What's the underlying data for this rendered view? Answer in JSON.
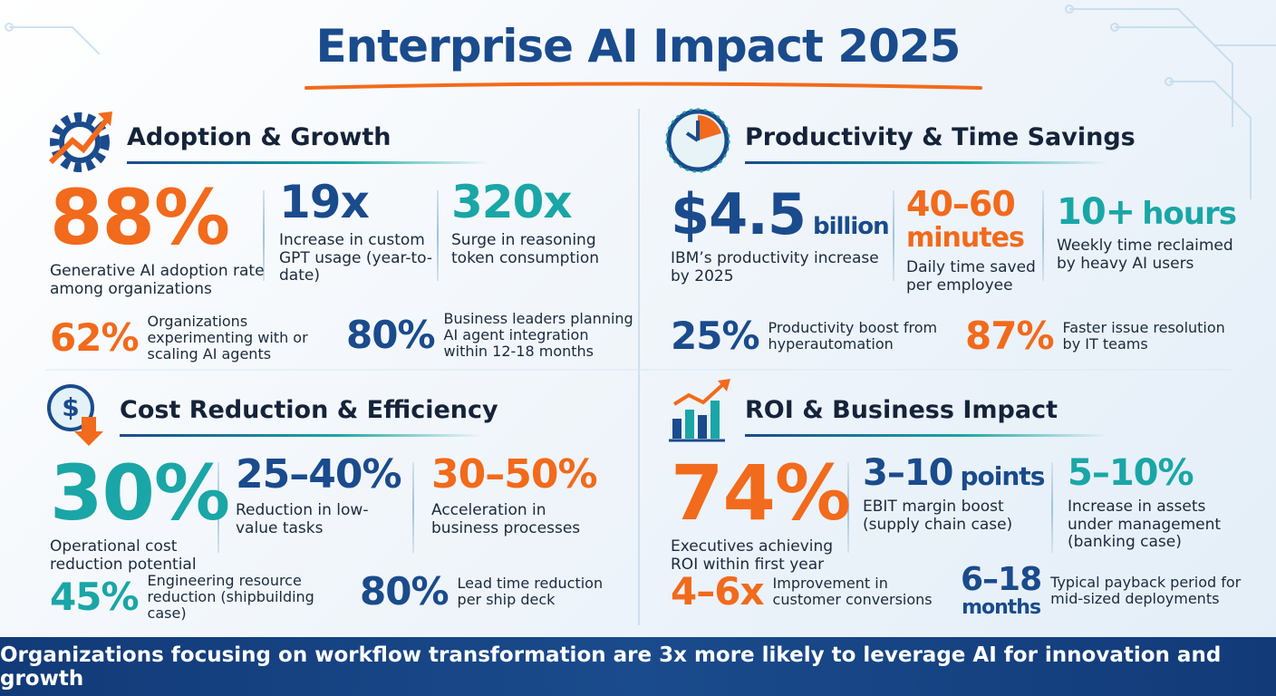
{
  "title": "Enterprise AI Impact 2025",
  "sections": [
    {
      "heading": "Adoption & Growth",
      "main": [
        {
          "value": "88%",
          "text": "Generative AI adoption rate among organizations"
        },
        {
          "value": "19x",
          "text": "Increase in custom GPT usage (year-to-date)"
        },
        {
          "value": "320x",
          "text": "Surge in reasoning token consumption"
        }
      ],
      "secondary": [
        {
          "value": "62%",
          "text": "Organizations experimenting with or scaling AI agents"
        },
        {
          "value": "80%",
          "text": "Business leaders planning AI agent integration within 12-18 months"
        }
      ]
    },
    {
      "heading": "Productivity & Time Savings",
      "main": [
        {
          "value": "$4.5",
          "unit": "billion",
          "text": "IBM’s productivity increase by 2025"
        },
        {
          "value": "40–60",
          "unit": "minutes",
          "text": "Daily time saved per employee"
        },
        {
          "value": "10+",
          "unit": "hours",
          "text": "Weekly time reclaimed by heavy AI users"
        }
      ],
      "secondary": [
        {
          "value": "25%",
          "text": "Productivity boost from hyperautomation"
        },
        {
          "value": "87%",
          "text": "Faster issue resolution by IT teams"
        }
      ]
    },
    {
      "heading": "Cost Reduction & Efficiency",
      "main": [
        {
          "value": "30%",
          "text": "Operational cost reduction potential"
        },
        {
          "value": "25–40%",
          "text": "Reduction in low-value tasks"
        },
        {
          "value": "30–50%",
          "text": "Acceleration in business processes"
        }
      ],
      "secondary": [
        {
          "value": "45%",
          "text": "Engineering resource reduction (shipbuilding case)"
        },
        {
          "value": "80%",
          "text": "Lead time reduction per ship deck"
        }
      ]
    },
    {
      "heading": "ROI & Business Impact",
      "main": [
        {
          "value": "74%",
          "text": "Executives achieving ROI within first year"
        },
        {
          "value": "3–10",
          "unit": "points",
          "text": "EBIT margin boost (supply chain case)"
        },
        {
          "value": "5–10%",
          "text": "Increase in assets under management (banking case)"
        }
      ],
      "secondary": [
        {
          "value": "4–6x",
          "text": "Improvement in customer conversions"
        },
        {
          "value": "6–18",
          "unit": "months",
          "text": "Typical payback period for mid-sized deployments"
        }
      ]
    }
  ],
  "footer": "Organizations focusing on workflow transformation are 3x more likely to leverage AI for innovation and growth"
}
